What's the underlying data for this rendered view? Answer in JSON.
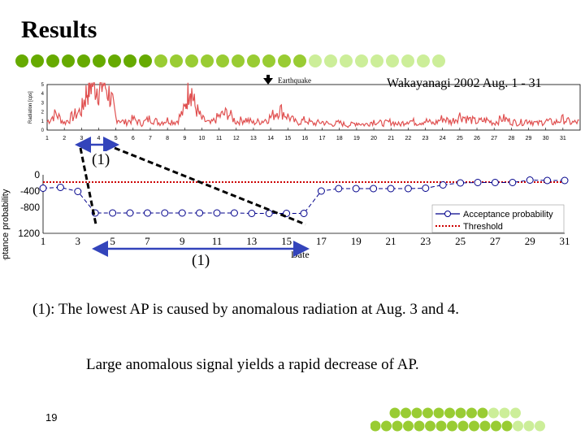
{
  "slide": {
    "title": "Results",
    "station_label": "Wakayanagi 2002 Aug. 1 - 31",
    "earthquake_label": "Earthquake",
    "annotation_label": "(1)",
    "caption_line1": "(1): The lowest AP is caused by anomalous radiation at Aug. 3 and 4.",
    "caption_line2": "Large anomalous signal yields a rapid decrease of AP.",
    "page_number": "19"
  },
  "colors": {
    "dot_dark": "#66aa00",
    "dot_mid": "#99cc33",
    "dot_light": "#ccee99",
    "radiation_line": "#e05050",
    "ap_line": "#00008b",
    "threshold": "#cc0000",
    "arrow": "#3344bb",
    "dashed": "#000000"
  },
  "chart_data": [
    {
      "type": "line",
      "title": "",
      "ylabel": "Radiation [cps]",
      "xlabel": "",
      "x_ticks": [
        "1",
        "2",
        "3",
        "4",
        "5",
        "6",
        "7",
        "8",
        "9",
        "10",
        "11",
        "12",
        "13",
        "14",
        "15",
        "16",
        "17",
        "18",
        "19",
        "20",
        "21",
        "22",
        "23",
        "24",
        "25",
        "26",
        "27",
        "28",
        "29",
        "30",
        "31"
      ],
      "y_ticks": [
        "5",
        "4",
        "3",
        "2",
        "1",
        "0"
      ],
      "ylim": [
        0,
        5
      ],
      "xlim": [
        1,
        32
      ],
      "series": [
        {
          "name": "Radiation",
          "x": [
            1,
            1.5,
            2,
            2.5,
            3,
            3.3,
            3.6,
            4,
            4.3,
            4.7,
            5,
            5.5,
            6,
            6.5,
            7,
            7.5,
            8,
            8.5,
            9,
            9.3,
            9.6,
            10,
            10.5,
            11,
            11.5,
            12,
            12.5,
            13,
            13.5,
            14,
            14.5,
            15,
            15.5,
            16,
            16.5,
            17,
            17.5,
            18,
            18.5,
            19,
            19.5,
            20,
            20.5,
            21,
            21.5,
            22,
            22.5,
            23,
            23.5,
            24,
            24.5,
            25,
            25.5,
            26,
            26.5,
            27,
            27.5,
            28,
            28.5,
            29,
            29.5,
            30,
            30.5,
            31,
            31.5,
            32
          ],
          "values": [
            0.9,
            1.8,
            0.8,
            1.5,
            2.2,
            4.2,
            5.3,
            4.6,
            5.2,
            3.6,
            1.4,
            0.8,
            1.2,
            0.7,
            1.3,
            0.8,
            1.1,
            0.9,
            2.2,
            5.2,
            2.6,
            1.2,
            0.7,
            1.5,
            1.9,
            0.9,
            1.2,
            0.8,
            1.0,
            1.4,
            2.3,
            1.5,
            0.8,
            1.1,
            0.7,
            0.9,
            0.6,
            0.8,
            0.5,
            0.8,
            0.6,
            1.0,
            0.7,
            0.9,
            0.6,
            1.1,
            0.8,
            1.0,
            0.7,
            1.3,
            0.9,
            1.6,
            1.2,
            0.9,
            1.1,
            0.8,
            1.3,
            0.9,
            0.8,
            1.1,
            0.7,
            1.0,
            0.8,
            1.2,
            0.8,
            0.9
          ]
        }
      ]
    },
    {
      "type": "line",
      "title": "",
      "xlabel": "Date",
      "ylabel": "Acceptance probability",
      "x_ticks": [
        "1",
        "3",
        "5",
        "7",
        "9",
        "11",
        "13",
        "15",
        "17",
        "19",
        "21",
        "23",
        "25",
        "27",
        "29",
        "31"
      ],
      "y_ticks": [
        "0",
        "-400",
        "-800",
        "1200"
      ],
      "xlim": [
        1,
        31
      ],
      "ylim": [
        -1200,
        0
      ],
      "series": [
        {
          "name": "Acceptance probability",
          "x": [
            1,
            2,
            3,
            4,
            5,
            6,
            7,
            8,
            9,
            10,
            11,
            12,
            13,
            14,
            15,
            16,
            17,
            18,
            19,
            20,
            21,
            22,
            23,
            24,
            25,
            26,
            27,
            28,
            29,
            30,
            31
          ],
          "values": [
            -330,
            -310,
            -410,
            -940,
            -940,
            -940,
            -940,
            -940,
            -940,
            -940,
            -940,
            -940,
            -950,
            -950,
            -950,
            -950,
            -400,
            -340,
            -340,
            -340,
            -340,
            -340,
            -330,
            -250,
            -200,
            -190,
            -190,
            -190,
            -130,
            -140,
            -140
          ]
        },
        {
          "name": "Threshold",
          "x": [
            1,
            31
          ],
          "values": [
            -180,
            -180
          ]
        }
      ],
      "legend": [
        "Acceptance probability",
        "Threshold"
      ],
      "legend_position": "bottom-right"
    }
  ]
}
